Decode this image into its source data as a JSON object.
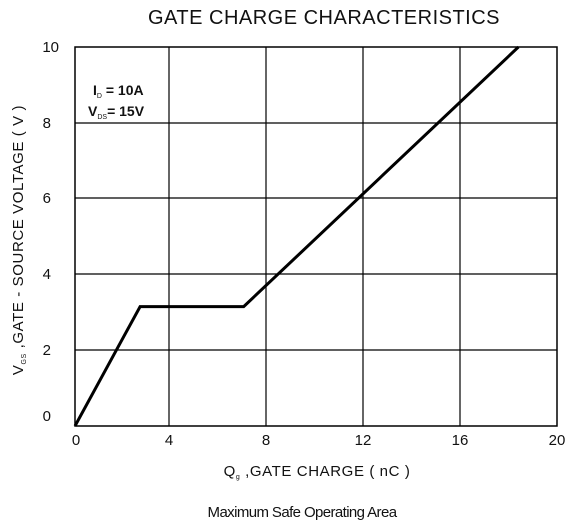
{
  "chart_data": {
    "type": "line",
    "title": "GATE CHARGE CHARACTERISTICS",
    "xlabel": {
      "symbol": "Q",
      "subscript": "g",
      "text": " ,GATE CHARGE ( nC )"
    },
    "ylabel": {
      "symbol": "V",
      "subscript": "GS",
      "text": " ,GATE - SOURCE VOLTAGE ( V )"
    },
    "xlim": [
      0,
      20
    ],
    "ylim": [
      0,
      10
    ],
    "x_ticks": [
      "0",
      "4",
      "8",
      "12",
      "16",
      "20"
    ],
    "y_ticks": [
      "0",
      "2",
      "4",
      "6",
      "8",
      "10"
    ],
    "grid": true,
    "annotations": [
      {
        "symbol": "I",
        "subscript": "D",
        "text": " = 10A"
      },
      {
        "symbol": "V",
        "subscript": "DS",
        "text": "= 15V"
      }
    ],
    "series": [
      {
        "x": [
          0,
          2.7,
          7.0,
          18.4
        ],
        "y": [
          0,
          3.15,
          3.15,
          10
        ]
      }
    ]
  },
  "caption": "Maximum Safe Operating Area"
}
